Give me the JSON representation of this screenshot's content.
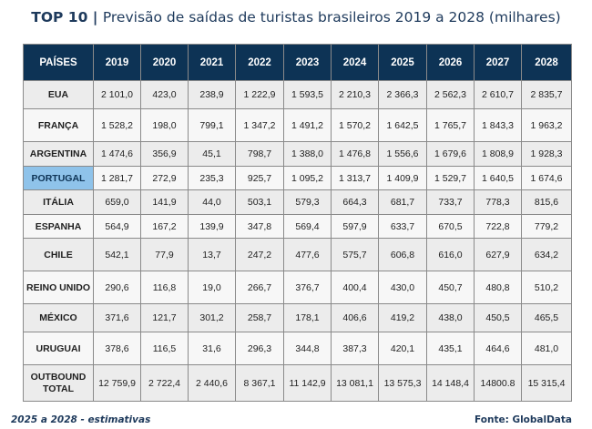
{
  "title": {
    "prefix": "TOP 10",
    "separator": " | ",
    "text": "Previsão de saídas de turistas brasileiros 2019 a 2028 (milhares)"
  },
  "table": {
    "headers": [
      "PAÍSES",
      "2019",
      "2020",
      "2021",
      "2022",
      "2023",
      "2024",
      "2025",
      "2026",
      "2027",
      "2028"
    ],
    "rows": [
      {
        "country": "EUA",
        "values": [
          "2 101,0",
          "423,0",
          "238,9",
          "1 222,9",
          "1 593,5",
          "2 210,3",
          "2 366,3",
          "2 562,3",
          "2 610,7",
          "2 835,7"
        ]
      },
      {
        "country": "FRANÇA",
        "values": [
          "1 528,2",
          "198,0",
          "799,1",
          "1 347,2",
          "1 491,2",
          "1 570,2",
          "1 642,5",
          "1 765,7",
          "1 843,3",
          "1 963,2"
        ]
      },
      {
        "country": "ARGENTINA",
        "values": [
          "1 474,6",
          "356,9",
          "45,1",
          "798,7",
          "1 388,0",
          "1 476,8",
          "1 556,6",
          "1 679,6",
          "1 808,9",
          "1 928,3"
        ]
      },
      {
        "country": "PORTUGAL",
        "highlight": true,
        "values": [
          "1 281,7",
          "272,9",
          "235,3",
          "925,7",
          "1 095,2",
          "1 313,7",
          "1 409,9",
          "1 529,7",
          "1 640,5",
          "1 674,6"
        ]
      },
      {
        "country": "ITÁLIA",
        "values": [
          "659,0",
          "141,9",
          "44,0",
          "503,1",
          "579,3",
          "664,3",
          "681,7",
          "733,7",
          "778,3",
          "815,6"
        ]
      },
      {
        "country": "ESPANHA",
        "values": [
          "564,9",
          "167,2",
          "139,9",
          "347,8",
          "569,4",
          "597,9",
          "633,7",
          "670,5",
          "722,8",
          "779,2"
        ]
      },
      {
        "country": "CHILE",
        "values": [
          "542,1",
          "77,9",
          "13,7",
          "247,2",
          "477,6",
          "575,7",
          "606,8",
          "616,0",
          "627,9",
          "634,2"
        ]
      },
      {
        "country": "REINO UNIDO",
        "values": [
          "290,6",
          "116,8",
          "19,0",
          "266,7",
          "376,7",
          "400,4",
          "430,0",
          "450,7",
          "480,8",
          "510,2"
        ]
      },
      {
        "country": "MÉXICO",
        "values": [
          "371,6",
          "121,7",
          "301,2",
          "258,7",
          "178,1",
          "406,6",
          "419,2",
          "438,0",
          "450,5",
          "465,5"
        ]
      },
      {
        "country": "URUGUAI",
        "values": [
          "378,6",
          "116,5",
          "31,6",
          "296,3",
          "344,8",
          "387,3",
          "420,1",
          "435,1",
          "464,6",
          "481,0"
        ]
      },
      {
        "country": "OUTBOUND TOTAL",
        "total": true,
        "values": [
          "12 759,9",
          "2 722,4",
          "2 440,6",
          "8 367,1",
          "11 142,9",
          "13 081,1",
          "13 575,3",
          "14 148,4",
          "14800.8",
          "15 315,4"
        ]
      }
    ]
  },
  "footnote": "2025 a 2028 - estimativas",
  "source": "Fonte: GlobalData",
  "colors": {
    "header_bg": "#0d3355",
    "highlight": "#8fc3ea",
    "title": "#1e3a5c"
  }
}
